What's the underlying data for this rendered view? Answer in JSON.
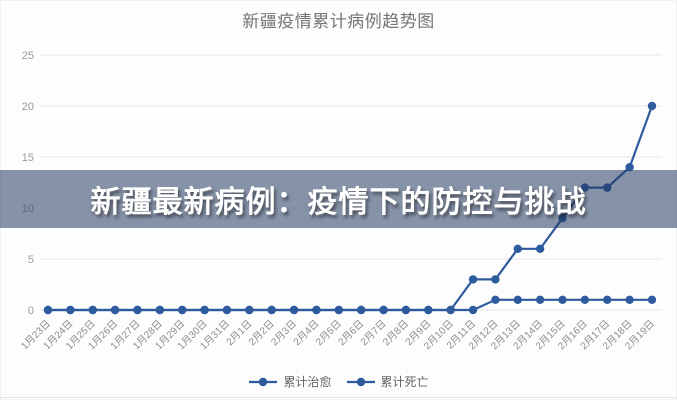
{
  "header": {
    "title": "新疆疫情累计病例趋势图"
  },
  "overlay": {
    "headline": "新疆最新病例：疫情下的防控与挑战"
  },
  "colors": {
    "series_line": "#2e5b9e",
    "banner_bg": "rgba(36,58,96,0.55)",
    "banner_text": "#ffffff",
    "grid_line": "#e8e8e8",
    "axis_text": "#9a9a9a",
    "title_text": "#757575"
  },
  "chart_data": {
    "type": "line",
    "title": "新疆疫情累计病例趋势图",
    "xlabel": "",
    "ylabel": "",
    "ylim": [
      0,
      25
    ],
    "yticks": [
      0,
      5,
      10,
      15,
      20,
      25
    ],
    "grid": true,
    "legend_position": "bottom",
    "x_label_rotation": -45,
    "categories": [
      "1月23日",
      "1月24日",
      "1月25日",
      "1月26日",
      "1月27日",
      "1月28日",
      "1月29日",
      "1月30日",
      "1月31日",
      "2月1日",
      "2月2日",
      "2月3日",
      "2月4日",
      "2月5日",
      "2月6日",
      "2月7日",
      "2月8日",
      "2月9日",
      "2月10日",
      "2月11日",
      "2月12日",
      "2月13日",
      "2月14日",
      "2月15日",
      "2月16日",
      "2月17日",
      "2月18日",
      "2月19日"
    ],
    "series": [
      {
        "name": "累计治愈",
        "color": "#2e5b9e",
        "values": [
          0,
          0,
          0,
          0,
          0,
          0,
          0,
          0,
          0,
          0,
          0,
          0,
          0,
          0,
          0,
          0,
          0,
          0,
          0,
          3,
          3,
          6,
          6,
          9,
          12,
          12,
          14,
          20
        ]
      },
      {
        "name": "累计死亡",
        "color": "#2e5b9e",
        "values": [
          0,
          0,
          0,
          0,
          0,
          0,
          0,
          0,
          0,
          0,
          0,
          0,
          0,
          0,
          0,
          0,
          0,
          0,
          0,
          0,
          1,
          1,
          1,
          1,
          1,
          1,
          1,
          1
        ]
      }
    ]
  }
}
